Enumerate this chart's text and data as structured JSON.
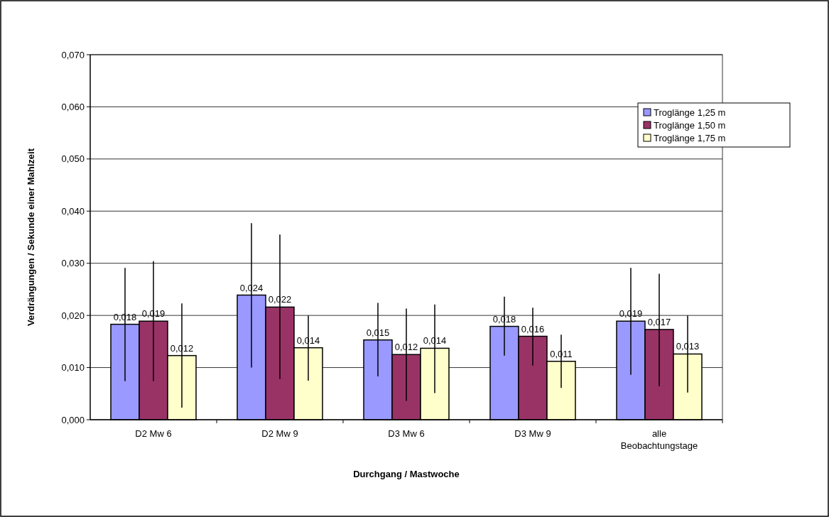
{
  "chart_data": {
    "type": "bar",
    "xlabel": "Durchgang / Mastwoche",
    "ylabel": "Verdrängungen / Sekunde einer Mahlzeit",
    "categories": [
      "D2 Mw 6",
      "D2 Mw 9",
      "D3 Mw 6",
      "D3 Mw 9",
      "alle Beobachtungstage"
    ],
    "series": [
      {
        "name": "Troglänge 1,25 m",
        "color": "#9999ff",
        "values": [
          0.0183,
          0.0239,
          0.0153,
          0.0179,
          0.0189
        ],
        "value_labels": [
          "0,018",
          "0,024",
          "0,015",
          "0,018",
          "0,019"
        ],
        "errors": [
          [
            0.0074,
            0.0291
          ],
          [
            0.01,
            0.0377
          ],
          [
            0.0083,
            0.0224
          ],
          [
            0.0123,
            0.0236
          ],
          [
            0.0086,
            0.0291
          ]
        ]
      },
      {
        "name": "Troglänge 1,50 m",
        "color": "#993366",
        "values": [
          0.0189,
          0.0216,
          0.0125,
          0.016,
          0.0173
        ],
        "value_labels": [
          "0,019",
          "0,022",
          "0,012",
          "0,016",
          "0,017"
        ],
        "errors": [
          [
            0.0074,
            0.0304
          ],
          [
            0.0078,
            0.0355
          ],
          [
            0.0036,
            0.0213
          ],
          [
            0.0104,
            0.0215
          ],
          [
            0.0064,
            0.028
          ]
        ]
      },
      {
        "name": "Troglänge 1,75 m",
        "color": "#ffffcc",
        "values": [
          0.0123,
          0.0138,
          0.0137,
          0.0112,
          0.0126
        ],
        "value_labels": [
          "0,012",
          "0,014",
          "0,014",
          "0,011",
          "0,013"
        ],
        "errors": [
          [
            0.0023,
            0.0223
          ],
          [
            0.0075,
            0.02
          ],
          [
            0.0051,
            0.0221
          ],
          [
            0.0061,
            0.0163
          ],
          [
            0.0052,
            0.02
          ]
        ]
      }
    ],
    "ylim": [
      0,
      0.07
    ],
    "yticks": [
      {
        "value": 0,
        "label": "0,000"
      },
      {
        "value": 0.01,
        "label": "0,010"
      },
      {
        "value": 0.02,
        "label": "0,020"
      },
      {
        "value": 0.03,
        "label": "0,030"
      },
      {
        "value": 0.04,
        "label": "0,040"
      },
      {
        "value": 0.05,
        "label": "0,050"
      },
      {
        "value": 0.06,
        "label": "0,060"
      },
      {
        "value": 0.07,
        "label": "0,070"
      }
    ],
    "grid": "y",
    "legend": "top right"
  }
}
